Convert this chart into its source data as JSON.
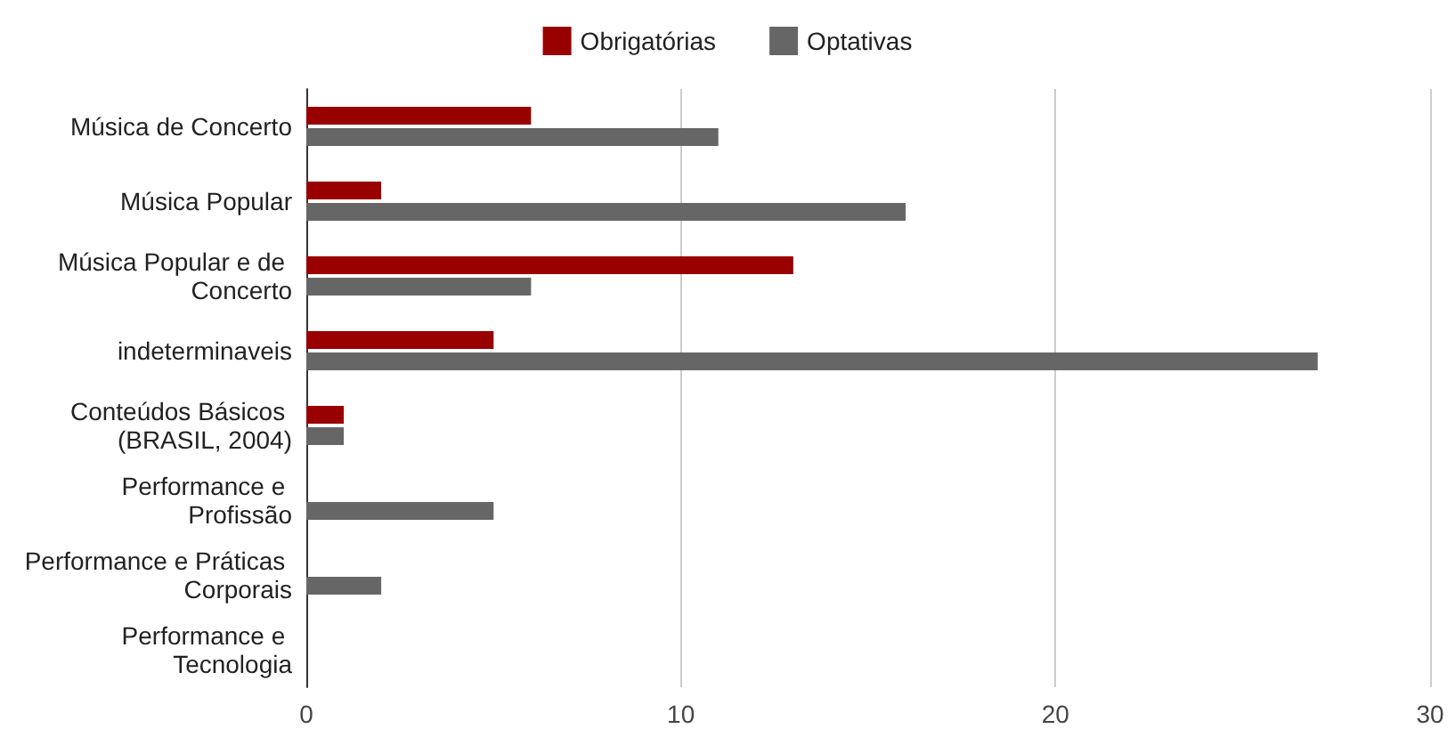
{
  "chart_data": {
    "type": "bar",
    "orientation": "horizontal",
    "categories": [
      "Música de Concerto",
      "Música Popular",
      "Música Popular e de Concerto",
      "indeterminaveis",
      "Conteúdos Básicos (BRASIL, 2004)",
      "Performance e Profissão",
      "Performance e Práticas Corporais",
      "Performance e Tecnologia"
    ],
    "series": [
      {
        "name": "Obrigatórias",
        "color": "#990000",
        "values": [
          6,
          2,
          13,
          5,
          1,
          0,
          0,
          0
        ]
      },
      {
        "name": "Optativas",
        "color": "#666666",
        "values": [
          11,
          16,
          6,
          27,
          1,
          5,
          2,
          0
        ]
      }
    ],
    "xlim": [
      0,
      30
    ],
    "xticks": [
      0,
      10,
      20,
      30
    ],
    "grid": "x",
    "legend": "top"
  }
}
